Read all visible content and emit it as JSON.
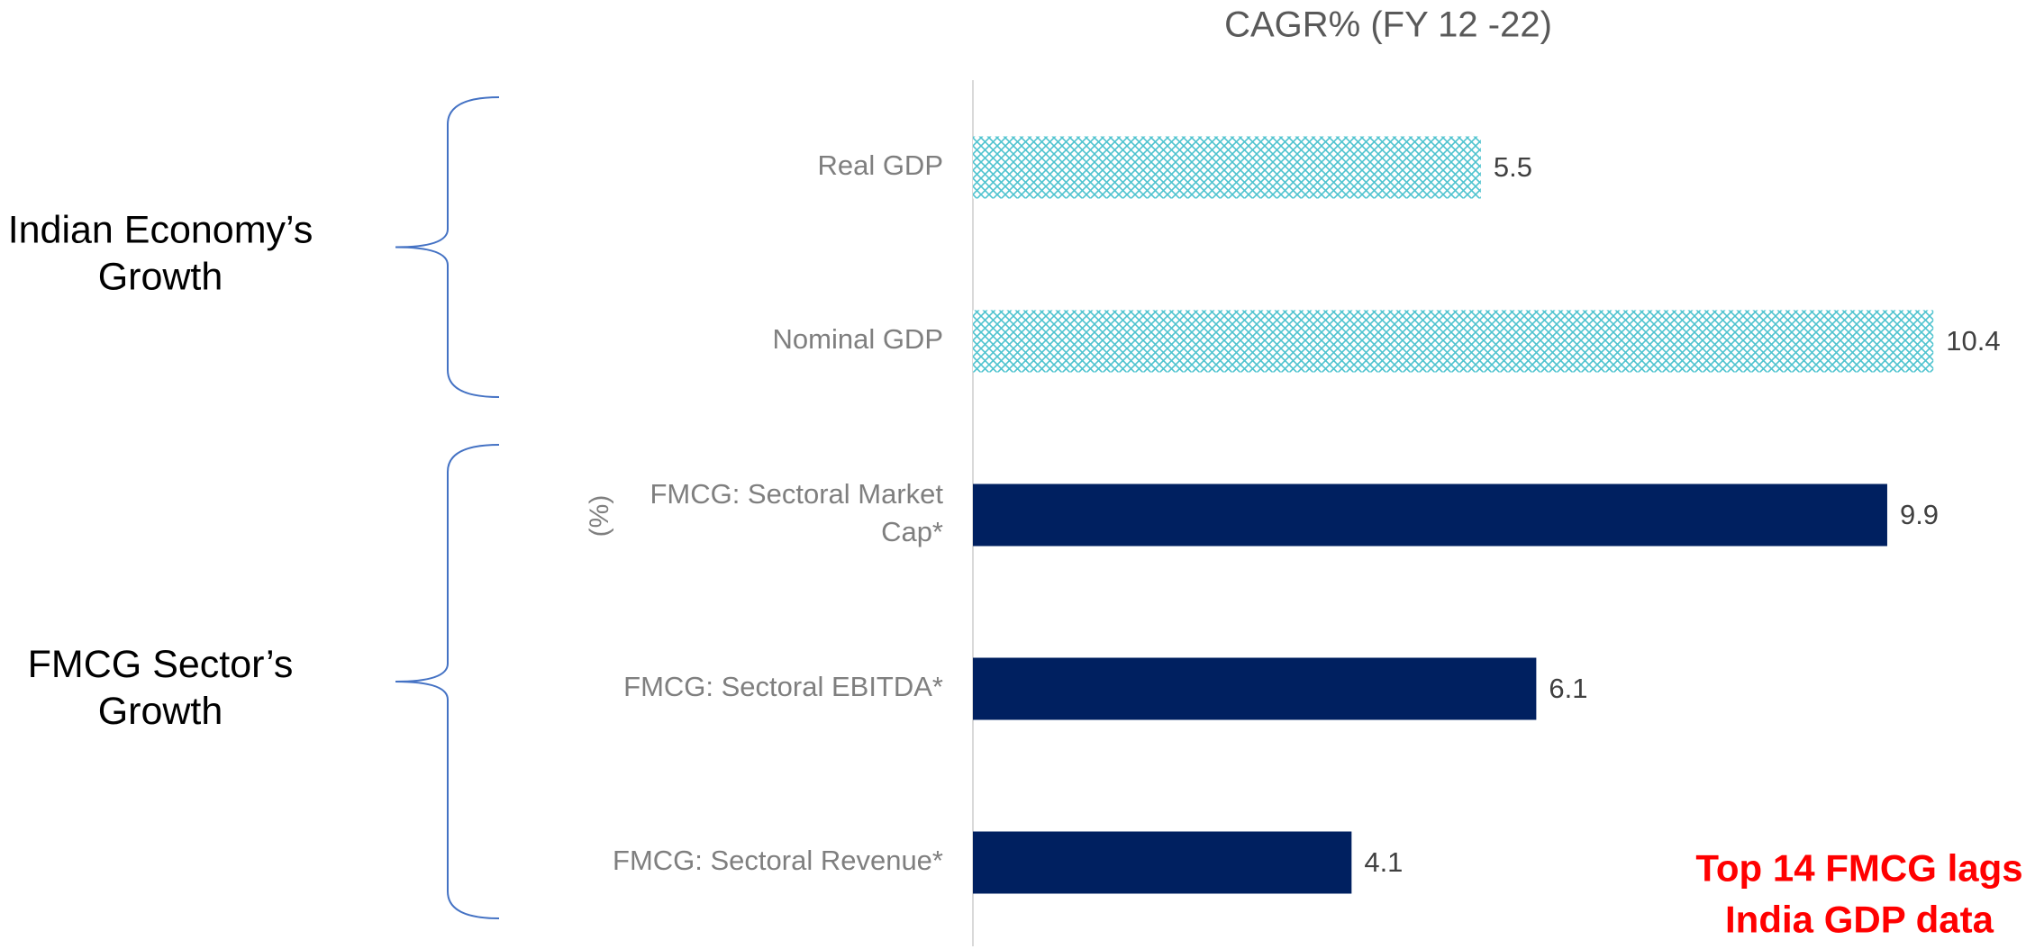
{
  "chart_data": {
    "type": "barh",
    "title": "CAGR% (FY 12 -22)",
    "ylabel": "(%)",
    "categories": [
      "Real GDP",
      "Nominal GDP",
      "FMCG: Sectoral Market Cap*",
      "FMCG: Sectoral EBITDA*",
      "FMCG: Sectoral Revenue*"
    ],
    "values": [
      5.5,
      10.4,
      9.9,
      6.1,
      4.1
    ],
    "colors": [
      "#4ec3cf",
      "#4ec3cf",
      "#002060",
      "#002060",
      "#002060"
    ],
    "patterns": [
      "crosshatch",
      "crosshatch",
      "solid",
      "solid",
      "solid"
    ],
    "xlim": [
      0,
      11.5
    ],
    "groups": [
      {
        "label": "Indian Economy’s Growth",
        "categories": [
          0,
          1
        ]
      },
      {
        "label": "FMCG Sector’s Growth",
        "categories": [
          2,
          4
        ]
      }
    ],
    "annotation": "Top 14 FMCG lags India GDP data",
    "annotation_color": "#ff0000"
  }
}
